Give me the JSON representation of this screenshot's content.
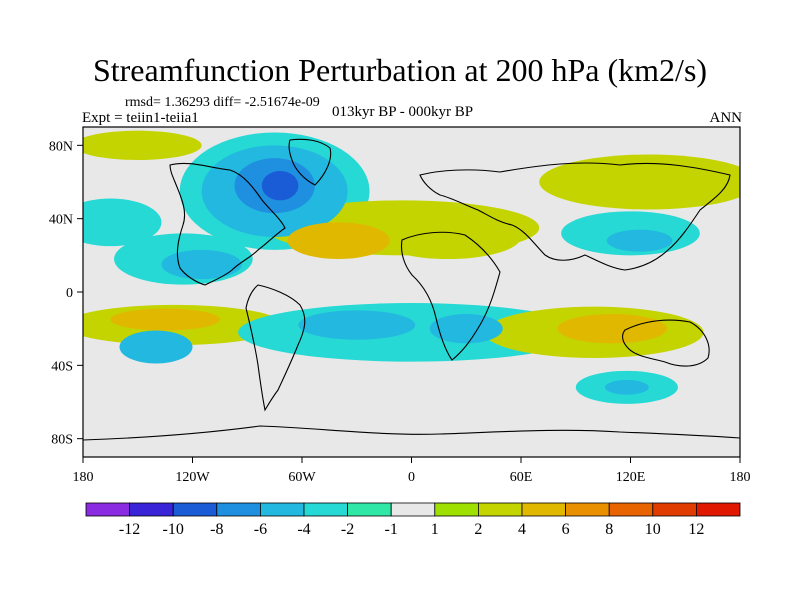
{
  "chart_data": {
    "type": "heatmap",
    "title": "Streamfunction Perturbation at 200 hPa (km2/s)",
    "stats_text": "rmsd= 1.36293 diff= -2.51674e-09",
    "experiment_label": "Expt = teiin1-teiia1",
    "period_label": "013kyr BP - 000kyr BP",
    "season_label": "ANN",
    "xlim": [
      -180,
      180
    ],
    "ylim": [
      -90,
      90
    ],
    "x_tick_labels": [
      {
        "value": -180,
        "label": "180"
      },
      {
        "value": -120,
        "label": "120W"
      },
      {
        "value": -60,
        "label": "60W"
      },
      {
        "value": 0,
        "label": "0"
      },
      {
        "value": 60,
        "label": "60E"
      },
      {
        "value": 120,
        "label": "120E"
      },
      {
        "value": 180,
        "label": "180"
      }
    ],
    "y_tick_labels": [
      {
        "value": 80,
        "label": "80N"
      },
      {
        "value": 40,
        "label": "40N"
      },
      {
        "value": 0,
        "label": "0"
      },
      {
        "value": -40,
        "label": "40S"
      },
      {
        "value": -80,
        "label": "80S"
      }
    ],
    "colorbar": {
      "colors": [
        "#8a2be2",
        "#3a24d8",
        "#1a5bd6",
        "#1f8fe0",
        "#22b8e0",
        "#27d9d4",
        "#2fe8a8",
        "#e8e8e8",
        "#9ee000",
        "#c4d400",
        "#e0b800",
        "#e89000",
        "#e86400",
        "#e03c00",
        "#e01800"
      ],
      "labels": [
        "-12",
        "-10",
        "-8",
        "-6",
        "-4",
        "-2",
        "-1",
        "1",
        "2",
        "4",
        "6",
        "8",
        "10",
        "12"
      ]
    },
    "features": [
      {
        "name": "north-atlantic-negative",
        "lon": -75,
        "lat": 55,
        "rx": 40,
        "ry": 25,
        "level": -4
      },
      {
        "name": "north-atlantic-core",
        "lon": -75,
        "lat": 58,
        "rx": 22,
        "ry": 15,
        "level": -6
      },
      {
        "name": "north-atlantic-inner",
        "lon": -72,
        "lat": 58,
        "rx": 10,
        "ry": 8,
        "level": -8
      },
      {
        "name": "north-atlantic-edge",
        "lon": -75,
        "lat": 55,
        "rx": 52,
        "ry": 32,
        "level": -2
      },
      {
        "name": "greenland-positive",
        "lon": -5,
        "lat": 35,
        "rx": 75,
        "ry": 15,
        "level": 2
      },
      {
        "name": "subtropical-atlantic-positive",
        "lon": -40,
        "lat": 28,
        "rx": 28,
        "ry": 10,
        "level": 4
      },
      {
        "name": "eurasian-positive-band",
        "lon": 20,
        "lat": 30,
        "rx": 40,
        "ry": 12,
        "level": 2
      },
      {
        "name": "east-asia-positive",
        "lon": 130,
        "lat": 60,
        "rx": 60,
        "ry": 15,
        "level": 2
      },
      {
        "name": "arctic-north-positive",
        "lon": -150,
        "lat": 80,
        "rx": 35,
        "ry": 8,
        "level": 2
      },
      {
        "name": "north-pacific-negative",
        "lon": -165,
        "lat": 38,
        "rx": 28,
        "ry": 13,
        "level": -2
      },
      {
        "name": "east-pacific-negative",
        "lon": -125,
        "lat": 18,
        "rx": 38,
        "ry": 14,
        "level": -2
      },
      {
        "name": "east-pacific-core",
        "lon": -115,
        "lat": 15,
        "rx": 22,
        "ry": 8,
        "level": -4
      },
      {
        "name": "west-pacific-negative",
        "lon": 120,
        "lat": 32,
        "rx": 38,
        "ry": 12,
        "level": -2
      },
      {
        "name": "west-pacific-core",
        "lon": 125,
        "lat": 28,
        "rx": 18,
        "ry": 6,
        "level": -4
      },
      {
        "name": "tropical-south-pacific-positive",
        "lon": -130,
        "lat": -18,
        "rx": 60,
        "ry": 11,
        "level": 2
      },
      {
        "name": "tropical-south-pacific-core",
        "lon": -135,
        "lat": -15,
        "rx": 30,
        "ry": 6,
        "level": 4
      },
      {
        "name": "southern-band-negative",
        "lon": 0,
        "lat": -22,
        "rx": 95,
        "ry": 16,
        "level": -2
      },
      {
        "name": "south-atlantic-core",
        "lon": -30,
        "lat": -18,
        "rx": 32,
        "ry": 8,
        "level": -4
      },
      {
        "name": "south-africa-core",
        "lon": 30,
        "lat": -20,
        "rx": 20,
        "ry": 8,
        "level": -4
      },
      {
        "name": "indian-ocean-positive",
        "lon": 100,
        "lat": -22,
        "rx": 60,
        "ry": 14,
        "level": 2
      },
      {
        "name": "australia-positive",
        "lon": 110,
        "lat": -20,
        "rx": 30,
        "ry": 8,
        "level": 4
      },
      {
        "name": "south-pacific-negative",
        "lon": -140,
        "lat": -30,
        "rx": 20,
        "ry": 9,
        "level": -4
      },
      {
        "name": "south-indian-negative",
        "lon": 118,
        "lat": -52,
        "rx": 28,
        "ry": 9,
        "level": -2
      },
      {
        "name": "south-indian-core",
        "lon": 118,
        "lat": -52,
        "rx": 12,
        "ry": 4,
        "level": -4
      }
    ]
  }
}
